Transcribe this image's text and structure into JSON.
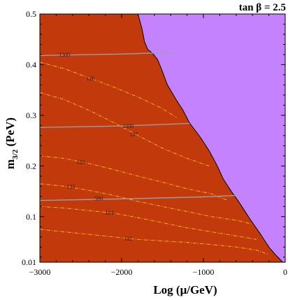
{
  "chart_data": {
    "type": "contour",
    "title": "tan β = 2.5",
    "xlabel": "Log (μ/GeV)",
    "ylabel_main": "m",
    "ylabel_sub": "3/2",
    "ylabel_unit": " (PeV)",
    "xlim": [
      -3000,
      0
    ],
    "ylim": [
      0.01,
      0.5
    ],
    "x_ticks": [
      -3000,
      -2000,
      -1000,
      0
    ],
    "x_tick_labels": [
      "−3000",
      "−2000",
      "−1000",
      "0"
    ],
    "y_ticks": [
      0.01,
      0.1,
      0.2,
      0.3,
      0.4,
      0.5
    ],
    "y_tick_labels": [
      "0.01",
      "0.1",
      "0.2",
      "0.3",
      "0.4",
      "0.5"
    ],
    "colors": {
      "allowed_region": "#c23a0c",
      "excluded_region": "#c482ff",
      "gray_contour": "#9aa3a8",
      "orange_contour": "#ffb020",
      "boundary": "#000000"
    },
    "boundary": [
      [
        -1800,
        0.5
      ],
      [
        -1750,
        0.47
      ],
      [
        -1720,
        0.445
      ],
      [
        -1680,
        0.43
      ],
      [
        -1620,
        0.422
      ],
      [
        -1560,
        0.41
      ],
      [
        -1510,
        0.39
      ],
      [
        -1440,
        0.36
      ],
      [
        -1330,
        0.33
      ],
      [
        -1250,
        0.31
      ],
      [
        -1170,
        0.285
      ],
      [
        -1030,
        0.255
      ],
      [
        -930,
        0.23
      ],
      [
        -830,
        0.2
      ],
      [
        -760,
        0.175
      ],
      [
        -660,
        0.15
      ],
      [
        -570,
        0.13
      ],
      [
        -430,
        0.095
      ],
      [
        -300,
        0.065
      ],
      [
        -200,
        0.04
      ],
      [
        -120,
        0.025
      ],
      [
        -30,
        0.01
      ]
    ],
    "gray_contours": [
      {
        "label": "1500",
        "label_x": -2700,
        "label_y": 0.42,
        "points": [
          [
            -3000,
            0.418
          ],
          [
            -2000,
            0.421
          ],
          [
            -1390,
            0.424
          ]
        ]
      },
      {
        "label": "1000",
        "label_x": -1920,
        "label_y": 0.279,
        "points": [
          [
            -3000,
            0.276
          ],
          [
            -2000,
            0.279
          ],
          [
            -1170,
            0.284
          ]
        ]
      },
      {
        "label": "500",
        "label_x": -2280,
        "label_y": 0.136,
        "points": [
          [
            -3000,
            0.132
          ],
          [
            -2000,
            0.135
          ],
          [
            -1000,
            0.139
          ],
          [
            -560,
            0.142
          ]
        ]
      }
    ],
    "orange_contours": [
      {
        "label": "126",
        "label_x": -2380,
        "label_y": 0.373,
        "points": [
          [
            -3000,
            0.405
          ],
          [
            -2700,
            0.392
          ],
          [
            -2400,
            0.374
          ],
          [
            -2100,
            0.356
          ],
          [
            -1800,
            0.336
          ],
          [
            -1520,
            0.315
          ],
          [
            -1330,
            0.296
          ]
        ]
      },
      {
        "label": "127",
        "label_x": -1850,
        "label_y": 0.263,
        "points": [
          [
            -3000,
            0.345
          ],
          [
            -2700,
            0.331
          ],
          [
            -2400,
            0.31
          ],
          [
            -2100,
            0.286
          ],
          [
            -1800,
            0.26
          ],
          [
            -1500,
            0.235
          ],
          [
            -1200,
            0.215
          ],
          [
            -930,
            0.2
          ]
        ]
      },
      {
        "label": "126",
        "label_x": -2500,
        "label_y": 0.208,
        "points": [
          [
            -3000,
            0.22
          ],
          [
            -2700,
            0.215
          ],
          [
            -2400,
            0.205
          ],
          [
            -2100,
            0.193
          ],
          [
            -1800,
            0.18
          ],
          [
            -1500,
            0.168
          ],
          [
            -1200,
            0.155
          ],
          [
            -900,
            0.145
          ],
          [
            -700,
            0.132
          ]
        ]
      },
      {
        "label": "125",
        "label_x": -2620,
        "label_y": 0.16,
        "points": [
          [
            -3000,
            0.165
          ],
          [
            -2700,
            0.16
          ],
          [
            -2400,
            0.152
          ],
          [
            -2100,
            0.142
          ],
          [
            -1800,
            0.13
          ],
          [
            -1500,
            0.12
          ],
          [
            -1200,
            0.11
          ],
          [
            -900,
            0.1
          ],
          [
            -600,
            0.093
          ],
          [
            -400,
            0.085
          ]
        ]
      },
      {
        "label": "124",
        "label_x": -2150,
        "label_y": 0.108,
        "points": [
          [
            -3000,
            0.12
          ],
          [
            -2700,
            0.117
          ],
          [
            -2400,
            0.112
          ],
          [
            -2100,
            0.107
          ],
          [
            -1800,
            0.098
          ],
          [
            -1500,
            0.088
          ],
          [
            -1200,
            0.078
          ],
          [
            -900,
            0.07
          ],
          [
            -600,
            0.062
          ],
          [
            -350,
            0.055
          ]
        ]
      },
      {
        "label": "122",
        "label_x": -1920,
        "label_y": 0.057,
        "points": [
          [
            -3000,
            0.075
          ],
          [
            -2700,
            0.07
          ],
          [
            -2400,
            0.065
          ],
          [
            -2100,
            0.06
          ],
          [
            -1800,
            0.055
          ],
          [
            -1500,
            0.052
          ],
          [
            -1200,
            0.049
          ],
          [
            -900,
            0.045
          ],
          [
            -600,
            0.04
          ],
          [
            -350,
            0.034
          ],
          [
            -200,
            0.025
          ]
        ]
      }
    ]
  }
}
